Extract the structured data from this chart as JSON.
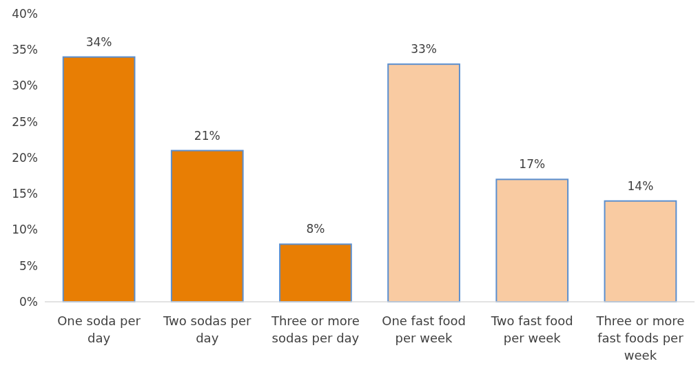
{
  "chart_data": {
    "type": "bar",
    "categories": [
      "One soda per day",
      "Two sodas per day",
      "Three or more sodas per day",
      "One fast food per week",
      "Two fast food per week",
      "Three or more fast foods per week"
    ],
    "values": [
      34,
      21,
      8,
      33,
      17,
      14
    ],
    "value_labels": [
      "34%",
      "21%",
      "8%",
      "33%",
      "17%",
      "14%"
    ],
    "colors": [
      "#e87e04",
      "#e87e04",
      "#e87e04",
      "#f9cba2",
      "#f9cba2",
      "#f9cba2"
    ],
    "ylim": [
      0,
      40
    ],
    "yticks": [
      {
        "value": 0,
        "label": "0%"
      },
      {
        "value": 5,
        "label": "5%"
      },
      {
        "value": 10,
        "label": "10%"
      },
      {
        "value": 15,
        "label": "15%"
      },
      {
        "value": 20,
        "label": "20%"
      },
      {
        "value": 25,
        "label": "25%"
      },
      {
        "value": 30,
        "label": "30%"
      },
      {
        "value": 35,
        "label": "35%"
      },
      {
        "value": 40,
        "label": "40%"
      }
    ],
    "grid": false
  }
}
